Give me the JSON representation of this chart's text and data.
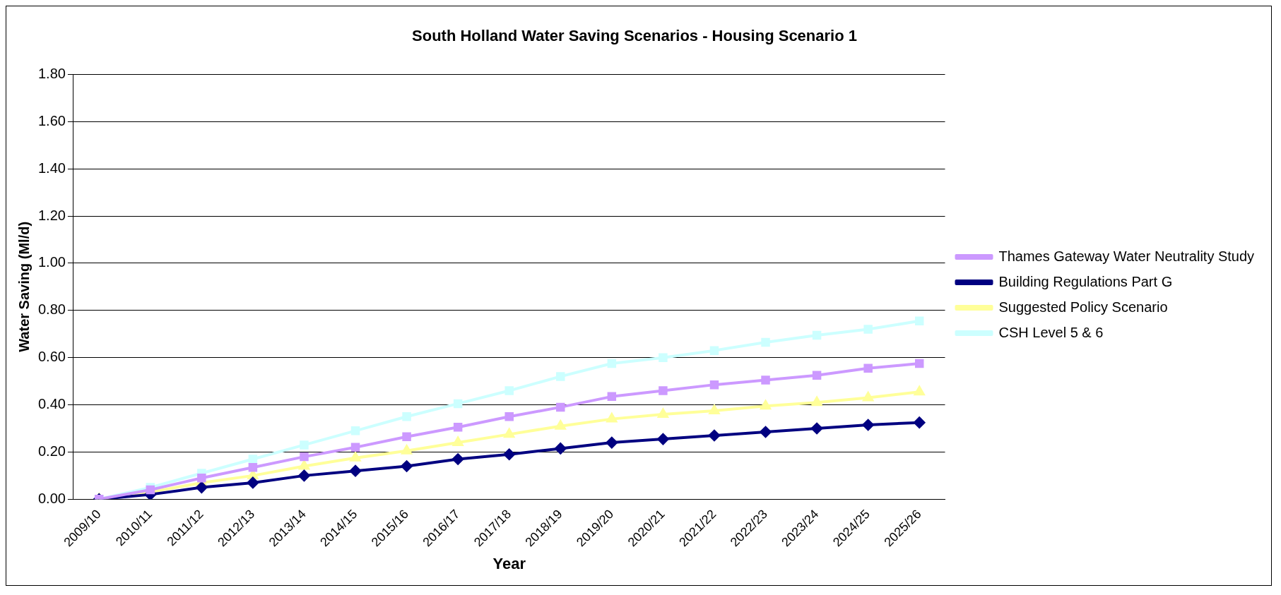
{
  "chart_data": {
    "type": "line",
    "title": "South Holland Water Saving Scenarios - Housing Scenario 1",
    "xlabel": "Year",
    "ylabel": "Water Saving (Ml/d)",
    "categories": [
      "2009/10",
      "2010/11",
      "2011/12",
      "2012/13",
      "2013/14",
      "2014/15",
      "2015/16",
      "2016/17",
      "2017/18",
      "2018/19",
      "2019/20",
      "2020/21",
      "2021/22",
      "2022/23",
      "2023/24",
      "2024/25",
      "2025/26"
    ],
    "series": [
      {
        "name": "Thames Gateway Water Neutrality Study",
        "color": "#cc99ff",
        "marker": "square",
        "values": [
          0,
          0.04,
          0.09,
          0.135,
          0.18,
          0.22,
          0.265,
          0.305,
          0.35,
          0.39,
          0.435,
          0.46,
          0.485,
          0.505,
          0.525,
          0.555,
          0.575
        ]
      },
      {
        "name": "Building Regulations Part G",
        "color": "#000080",
        "marker": "diamond",
        "values": [
          0,
          0.02,
          0.05,
          0.07,
          0.1,
          0.12,
          0.14,
          0.17,
          0.19,
          0.215,
          0.24,
          0.255,
          0.27,
          0.285,
          0.3,
          0.315,
          0.325
        ]
      },
      {
        "name": "Suggested Policy Scenario",
        "color": "#ffff99",
        "marker": "triangle",
        "values": [
          0,
          0.03,
          0.07,
          0.1,
          0.14,
          0.175,
          0.205,
          0.24,
          0.275,
          0.31,
          0.34,
          0.36,
          0.375,
          0.395,
          0.41,
          0.43,
          0.455
        ]
      },
      {
        "name": "CSH Level 5 & 6",
        "color": "#ccffff",
        "marker": "square",
        "values": [
          0,
          0.05,
          0.11,
          0.17,
          0.23,
          0.29,
          0.35,
          0.405,
          0.46,
          0.52,
          0.575,
          0.6,
          0.63,
          0.665,
          0.695,
          0.72,
          0.755
        ]
      }
    ],
    "ylim": [
      0,
      1.8
    ],
    "yticks": [
      {
        "value": 0,
        "label": "0.00"
      },
      {
        "value": 0.2,
        "label": "0.20"
      },
      {
        "value": 0.4,
        "label": "0.40"
      },
      {
        "value": 0.6,
        "label": "0.60"
      },
      {
        "value": 0.8,
        "label": "0.80"
      },
      {
        "value": 1,
        "label": "1.00"
      },
      {
        "value": 1.2,
        "label": "1.20"
      },
      {
        "value": 1.4,
        "label": "1.40"
      },
      {
        "value": 1.6,
        "label": "1.60"
      },
      {
        "value": 1.8,
        "label": "1.80"
      }
    ],
    "grid": "y",
    "legend": "right",
    "line_style": "solid"
  }
}
